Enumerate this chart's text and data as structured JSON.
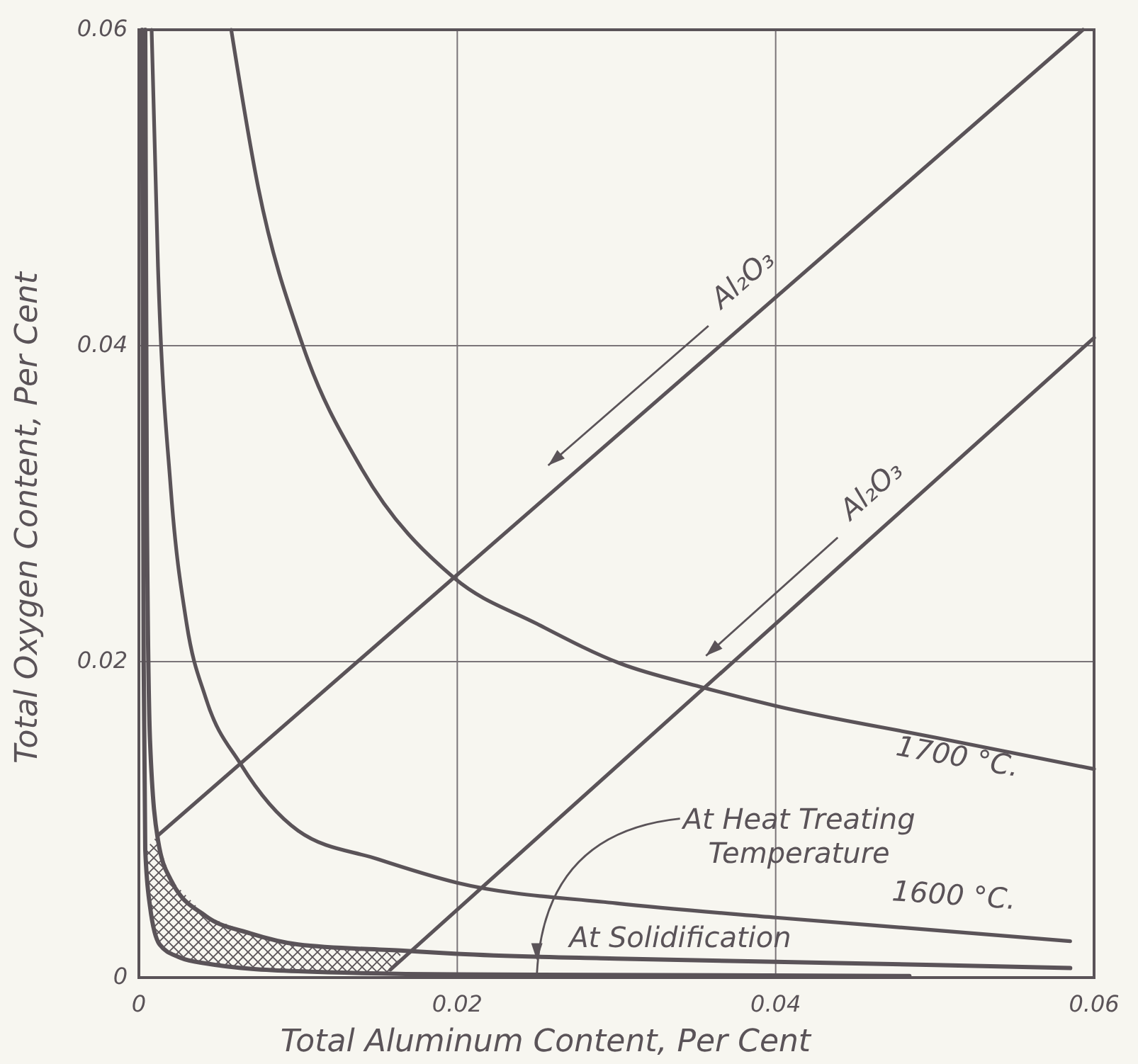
{
  "chart_data": {
    "type": "line",
    "xlabel": "Total Aluminum Content, Per Cent",
    "ylabel": "Total Oxygen Content, Per Cent",
    "xlim": [
      0,
      0.06
    ],
    "xticks": [
      0,
      0.02,
      0.04,
      0.06
    ],
    "ylim": [
      0,
      0.06
    ],
    "yticks": [
      0,
      0.02,
      0.04,
      0.06
    ],
    "grid": true,
    "marker": "none",
    "line_style": "solid",
    "annotations": [
      {
        "text": "At Heat Treating Temperature",
        "x": 0.025,
        "y": 0.0002
      }
    ],
    "series": [
      {
        "name": "Al₂O₃",
        "color": "#5a5358",
        "x": [
          0.0012,
          0.0593
        ],
        "values": [
          0.009,
          0.06
        ]
      },
      {
        "name": "Al₂O₃",
        "color": "#5a5358",
        "x": [
          0.0158,
          0.06
        ],
        "values": [
          0.0005,
          0.0405
        ]
      },
      {
        "name": "1700 °C.",
        "color": "#5a5358",
        "x": [
          0.0058,
          0.0075,
          0.0103,
          0.014,
          0.0198,
          0.025,
          0.0302,
          0.0353,
          0.04,
          0.05,
          0.06
        ],
        "values": [
          0.06,
          0.05,
          0.04,
          0.0322,
          0.0253,
          0.0224,
          0.0199,
          0.0184,
          0.0172,
          0.0152,
          0.0132
        ]
      },
      {
        "name": "1600 °C.",
        "color": "#5a5358",
        "x": [
          0.0008,
          0.0012,
          0.002,
          0.003,
          0.0042,
          0.0064,
          0.01,
          0.015,
          0.02,
          0.03,
          0.04,
          0.05,
          0.0585
        ],
        "values": [
          0.06,
          0.045,
          0.031,
          0.0224,
          0.0177,
          0.0135,
          0.0093,
          0.0075,
          0.006,
          0.0047,
          0.0038,
          0.003,
          0.0023
        ]
      },
      {
        "name": "At Solidification",
        "color": "#5a5358",
        "x": [
          0.0004,
          0.0005,
          0.0007,
          0.0012,
          0.002,
          0.0042,
          0.007,
          0.01,
          0.0166,
          0.02,
          0.03,
          0.04,
          0.05,
          0.0585
        ],
        "values": [
          0.06,
          0.03,
          0.015,
          0.0087,
          0.0062,
          0.0039,
          0.0028,
          0.0021,
          0.0017,
          0.0015,
          0.0012,
          0.001,
          0.0008,
          0.0006
        ]
      },
      {
        "color": "#5a5358",
        "x": [
          0.0002,
          0.0003,
          0.0004,
          0.0007,
          0.0013,
          0.0025,
          0.0042,
          0.01,
          0.02,
          0.0484
        ],
        "values": [
          0.06,
          0.02,
          0.0081,
          0.0045,
          0.0021,
          0.0013,
          0.0009,
          0.0004,
          0.0002,
          0.0001
        ]
      }
    ]
  }
}
